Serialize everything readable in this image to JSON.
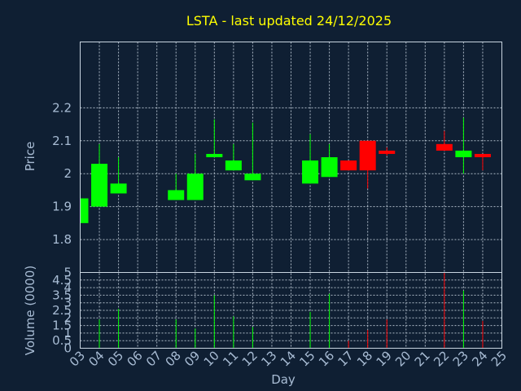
{
  "chart_data": {
    "type": "candlestick",
    "title": "LSTA - last updated 24/12/2025",
    "xlabel": "Day",
    "ylabel_price": "Price",
    "ylabel_volume": "Volume (0000)",
    "x_ticks": [
      "03",
      "04",
      "05",
      "06",
      "07",
      "08",
      "09",
      "10",
      "11",
      "12",
      "13",
      "14",
      "15",
      "16",
      "17",
      "18",
      "19",
      "20",
      "21",
      "22",
      "23",
      "24",
      "25"
    ],
    "price_ticks": [
      1.8,
      1.9,
      2,
      2.1,
      2.2
    ],
    "price_tick_labels": [
      "1.8",
      "1.9",
      "2",
      "2.1",
      "2.2"
    ],
    "price_range": [
      1.7,
      2.4
    ],
    "volume_ticks": [
      0,
      0.5,
      1,
      1.5,
      2,
      2.5,
      3,
      3.5,
      4,
      4.5,
      5
    ],
    "volume_tick_labels": [
      "0",
      "0.5",
      "1",
      "1.5",
      "2",
      "2.5",
      "3",
      "3.5",
      "4",
      "4.5",
      "5"
    ],
    "volume_range": [
      0,
      5
    ],
    "grid": true,
    "colors": {
      "up": "#00ff00",
      "down": "#ff0000",
      "title": "#ffff00",
      "background": "#0f1f33"
    },
    "candles": [
      {
        "day": 3,
        "open": 1.85,
        "high": 1.925,
        "low": 1.85,
        "close": 1.925
      },
      {
        "day": 4,
        "open": 1.9,
        "high": 2.09,
        "low": 1.9,
        "close": 2.03
      },
      {
        "day": 5,
        "open": 1.94,
        "high": 2.05,
        "low": 1.94,
        "close": 1.97
      },
      {
        "day": 8,
        "open": 1.92,
        "high": 2.0,
        "low": 1.92,
        "close": 1.95
      },
      {
        "day": 9,
        "open": 1.92,
        "high": 2.06,
        "low": 1.92,
        "close": 2.0
      },
      {
        "day": 10,
        "open": 2.05,
        "high": 2.165,
        "low": 2.05,
        "close": 2.06
      },
      {
        "day": 11,
        "open": 2.01,
        "high": 2.09,
        "low": 2.01,
        "close": 2.04
      },
      {
        "day": 12,
        "open": 1.98,
        "high": 2.155,
        "low": 1.98,
        "close": 2.0
      },
      {
        "day": 15,
        "open": 1.97,
        "high": 2.12,
        "low": 1.97,
        "close": 2.04
      },
      {
        "day": 16,
        "open": 1.99,
        "high": 2.09,
        "low": 1.99,
        "close": 2.05
      },
      {
        "day": 17,
        "open": 2.04,
        "high": 2.04,
        "low": 2.01,
        "close": 2.01
      },
      {
        "day": 18,
        "open": 2.1,
        "high": 2.1,
        "low": 1.955,
        "close": 2.01
      },
      {
        "day": 19,
        "open": 2.07,
        "high": 2.08,
        "low": 2.055,
        "close": 2.06
      },
      {
        "day": 22,
        "open": 2.09,
        "high": 2.13,
        "low": 2.07,
        "close": 2.07
      },
      {
        "day": 23,
        "open": 2.05,
        "high": 2.17,
        "low": 2.0,
        "close": 2.07
      },
      {
        "day": 24,
        "open": 2.06,
        "high": 2.06,
        "low": 2.01,
        "close": 2.05
      }
    ],
    "volumes": [
      {
        "day": 3,
        "value": 0.2,
        "direction": "up"
      },
      {
        "day": 4,
        "value": 1.9,
        "direction": "up"
      },
      {
        "day": 5,
        "value": 2.6,
        "direction": "up"
      },
      {
        "day": 8,
        "value": 1.9,
        "direction": "up"
      },
      {
        "day": 9,
        "value": 1.3,
        "direction": "up"
      },
      {
        "day": 10,
        "value": 3.5,
        "direction": "up"
      },
      {
        "day": 11,
        "value": 2.1,
        "direction": "up"
      },
      {
        "day": 12,
        "value": 1.4,
        "direction": "up"
      },
      {
        "day": 15,
        "value": 2.4,
        "direction": "up"
      },
      {
        "day": 16,
        "value": 3.6,
        "direction": "up"
      },
      {
        "day": 17,
        "value": 0.5,
        "direction": "down"
      },
      {
        "day": 18,
        "value": 1.2,
        "direction": "down"
      },
      {
        "day": 19,
        "value": 1.9,
        "direction": "down"
      },
      {
        "day": 22,
        "value": 5.0,
        "direction": "down"
      },
      {
        "day": 23,
        "value": 3.8,
        "direction": "up"
      },
      {
        "day": 24,
        "value": 1.8,
        "direction": "down"
      }
    ]
  }
}
